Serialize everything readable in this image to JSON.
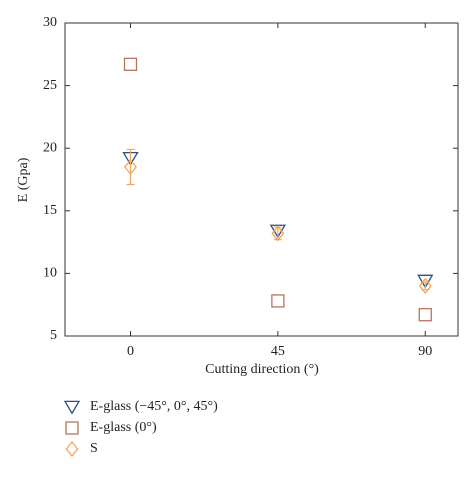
{
  "chart_data": {
    "type": "scatter",
    "x": [
      0,
      45,
      90
    ],
    "xlabel": "Cutting direction (°)",
    "ylabel": "E (Gpa)",
    "xlim": [
      -20,
      100
    ],
    "xticks": [
      0,
      45,
      90
    ],
    "ylim": [
      5,
      30
    ],
    "yticks": [
      5,
      10,
      15,
      20,
      25,
      30
    ],
    "series": [
      {
        "name": "E-glass (−45°, 0°, 45°)",
        "color": "#2c4f86",
        "marker": "triangle",
        "values": [
          19.2,
          13.4,
          9.4
        ]
      },
      {
        "name": "E-glass (0°)",
        "color": "#b87360",
        "marker": "square",
        "values": [
          26.7,
          7.8,
          6.7
        ]
      },
      {
        "name": "S",
        "color": "#f0a65a",
        "marker": "diamond",
        "values": [
          18.5,
          13.2,
          9.0
        ],
        "errors": [
          1.4,
          0.5,
          0.3
        ]
      }
    ]
  }
}
